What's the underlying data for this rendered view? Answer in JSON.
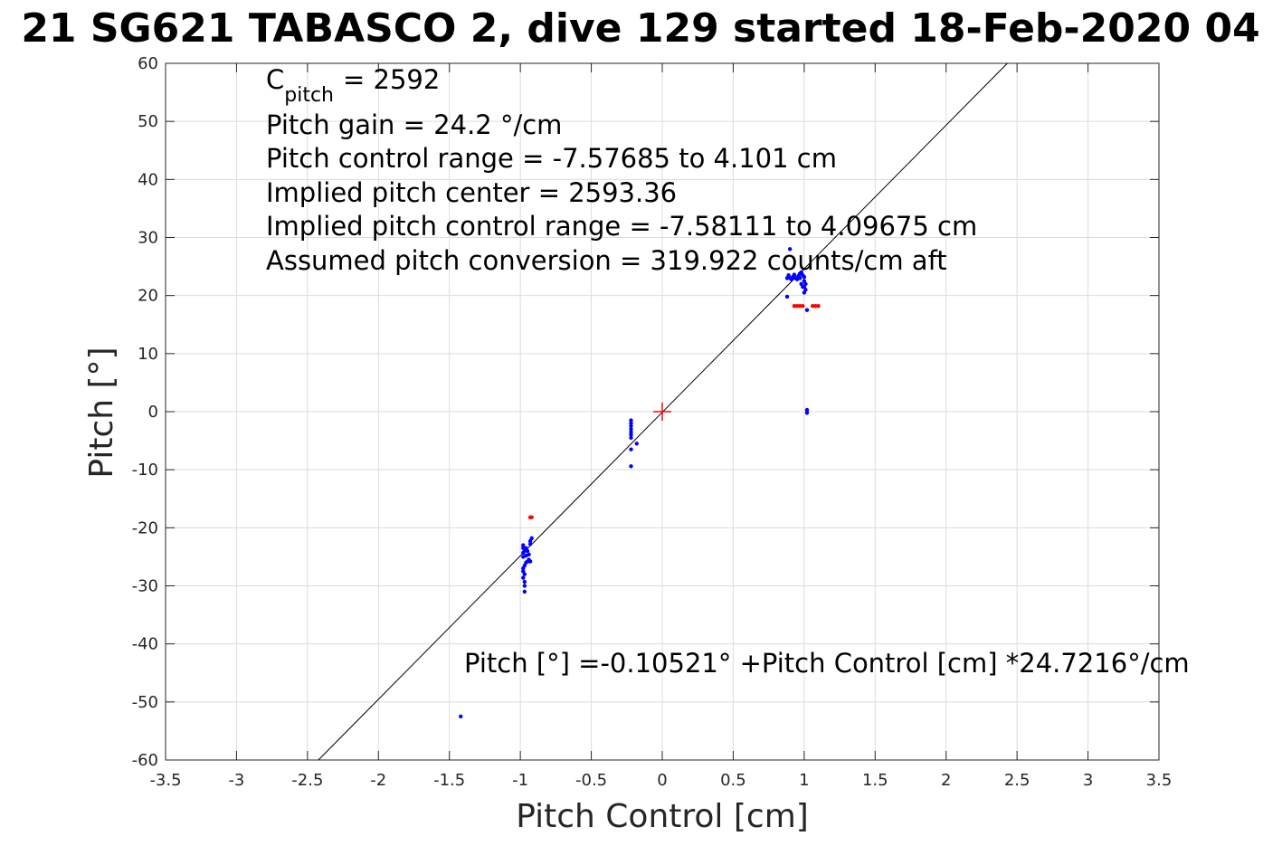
{
  "chart_data": {
    "type": "scatter",
    "title": "21 SG621 TABASCO 2, dive 129 started 18-Feb-2020 04",
    "xlabel": "Pitch Control [cm]",
    "ylabel": "Pitch [°]",
    "xlim": [
      -3.5,
      3.5
    ],
    "ylim": [
      -60,
      60
    ],
    "xticks": [
      -3.5,
      -3,
      -2.5,
      -2,
      -1.5,
      -1,
      -0.5,
      0,
      0.5,
      1,
      1.5,
      2,
      2.5,
      3,
      3.5
    ],
    "xtick_labels": [
      "-3.5",
      "-3",
      "-2.5",
      "-2",
      "-1.5",
      "-1",
      "-0.5",
      "0",
      "0.5",
      "1",
      "1.5",
      "2",
      "2.5",
      "3",
      "3.5"
    ],
    "yticks": [
      60,
      50,
      40,
      30,
      20,
      10,
      0,
      -10,
      -20,
      -30,
      -40,
      -50,
      -60
    ],
    "ytick_labels": [
      "60",
      "50",
      "40",
      "30",
      "20",
      "10",
      "0",
      "-10",
      "-20",
      "-30",
      "-40",
      "-50",
      "-60"
    ],
    "grid": true,
    "fit_line": {
      "intercept": -0.10521,
      "slope": 24.7216,
      "color": "#000000"
    },
    "center_marker": {
      "x": 0,
      "y": 0,
      "color": "#ff0000"
    },
    "series": [
      {
        "color": "#0000ff",
        "points": [
          [
            -1.42,
            -52.5
          ],
          [
            -0.22,
            -9.4
          ],
          [
            -0.22,
            -6.5
          ],
          [
            -0.18,
            -5.5
          ],
          [
            -0.22,
            -4.5
          ],
          [
            -0.22,
            -4.0
          ],
          [
            -0.22,
            -3.5
          ],
          [
            -0.22,
            -3.0
          ],
          [
            -0.22,
            -2.5
          ],
          [
            -0.22,
            -2.0
          ],
          [
            -0.22,
            -1.5
          ],
          [
            -0.97,
            -31.0
          ],
          [
            -0.97,
            -30.0
          ],
          [
            -0.97,
            -29.3
          ],
          [
            -0.98,
            -28.6
          ],
          [
            -0.97,
            -28.0
          ],
          [
            -0.98,
            -27.5
          ],
          [
            -0.98,
            -27.0
          ],
          [
            -0.97,
            -26.5
          ],
          [
            -0.96,
            -26.0
          ],
          [
            -0.95,
            -25.8
          ],
          [
            -0.94,
            -25.5
          ],
          [
            -0.93,
            -25.8
          ],
          [
            -0.98,
            -25.0
          ],
          [
            -0.96,
            -24.8
          ],
          [
            -0.94,
            -24.6
          ],
          [
            -0.98,
            -24.3
          ],
          [
            -0.97,
            -24.0
          ],
          [
            -0.95,
            -24.0
          ],
          [
            -0.98,
            -23.5
          ],
          [
            -0.96,
            -23.5
          ],
          [
            -0.98,
            -23.0
          ],
          [
            -0.93,
            -22.8
          ],
          [
            -0.93,
            -22.3
          ],
          [
            -0.92,
            -21.8
          ],
          [
            0.88,
            23.0
          ],
          [
            0.89,
            23.5
          ],
          [
            0.9,
            23.0
          ],
          [
            0.91,
            22.8
          ],
          [
            0.92,
            23.2
          ],
          [
            0.93,
            23.6
          ],
          [
            0.94,
            23.0
          ],
          [
            0.95,
            22.8
          ],
          [
            0.96,
            23.4
          ],
          [
            0.97,
            23.8
          ],
          [
            0.98,
            24.0
          ],
          [
            0.99,
            23.5
          ],
          [
            1.0,
            23.2
          ],
          [
            1.0,
            22.5
          ],
          [
            1.01,
            22.0
          ],
          [
            1.0,
            21.5
          ],
          [
            1.01,
            21.0
          ],
          [
            1.0,
            20.5
          ],
          [
            0.98,
            22.0
          ],
          [
            0.99,
            21.5
          ],
          [
            0.97,
            23.0
          ],
          [
            0.9,
            28.0
          ],
          [
            0.88,
            19.8
          ],
          [
            1.02,
            17.5
          ],
          [
            1.02,
            0.3
          ],
          [
            1.02,
            -0.2
          ]
        ]
      },
      {
        "color": "#ff0000",
        "points": [
          [
            -0.93,
            -18.2
          ],
          [
            -0.92,
            -18.2
          ],
          [
            0.93,
            18.2
          ],
          [
            0.95,
            18.2
          ],
          [
            0.97,
            18.2
          ],
          [
            0.99,
            18.2
          ],
          [
            1.06,
            18.2
          ],
          [
            1.08,
            18.2
          ],
          [
            1.1,
            18.2
          ]
        ]
      }
    ],
    "annotations": [
      "C",
      "pitch",
      "= 2592",
      "Pitch gain = 24.2 °/cm",
      "Pitch control range = -7.57685 to 4.101 cm",
      "Implied pitch center = 2593.36",
      "Implied pitch control range = -7.58111 to 4.09675 cm",
      "Assumed pitch conversion = 319.922 counts/cm aft",
      "Pitch [°] =-0.10521° +Pitch Control [cm] *24.7216°/cm"
    ]
  }
}
